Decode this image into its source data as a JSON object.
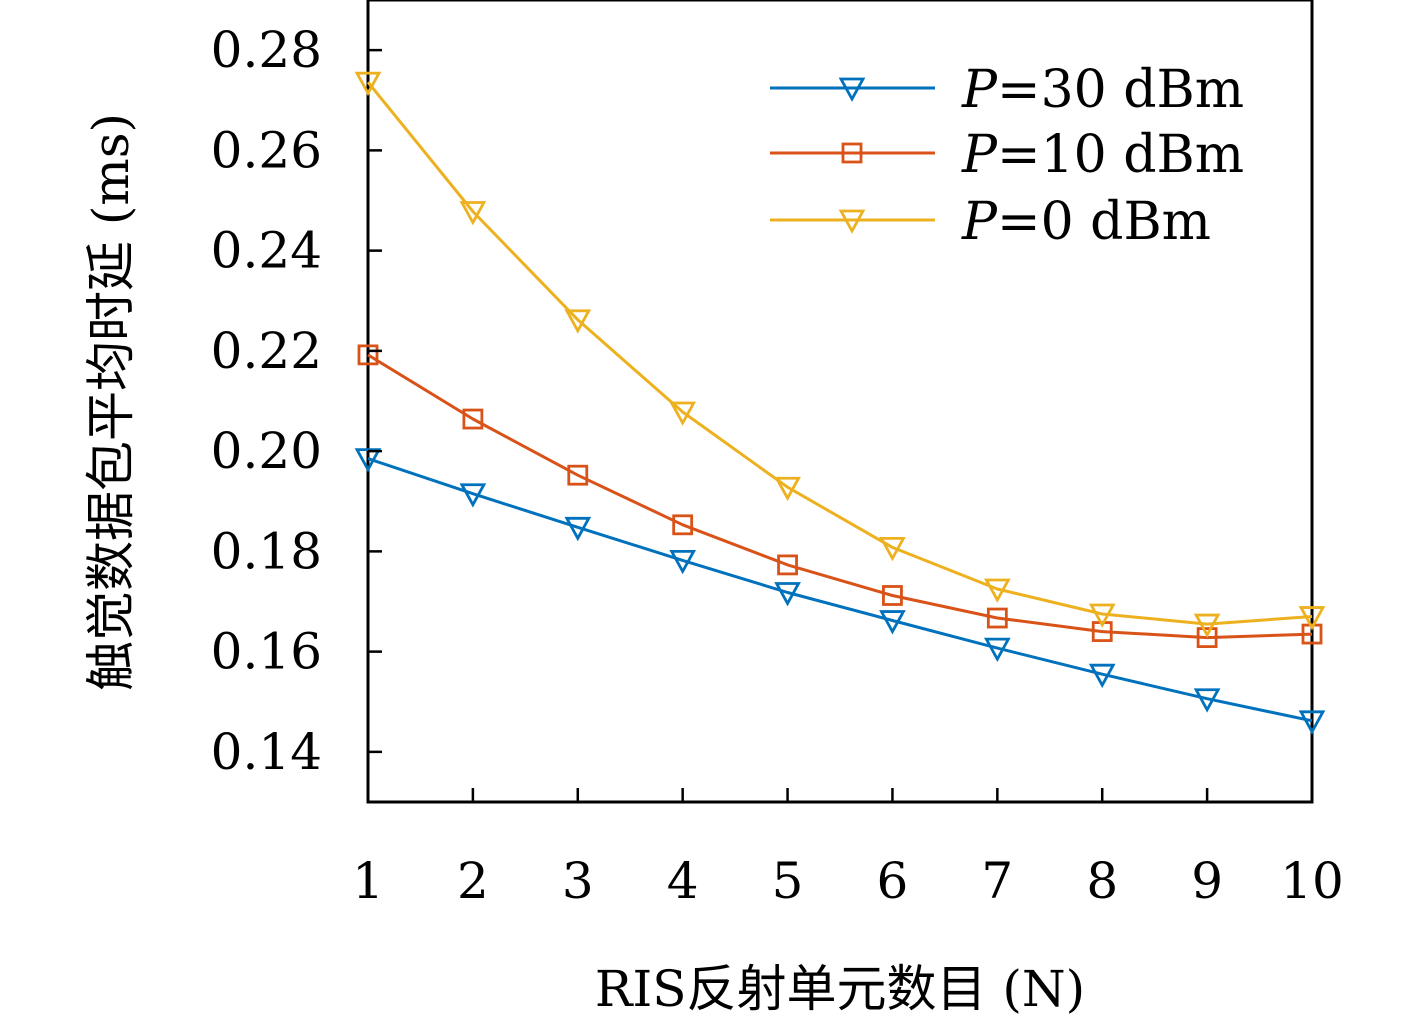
{
  "chart_data": {
    "type": "line",
    "xlabel": "RIS反射单元数目 (N)",
    "ylabel": "触觉数据包平均时延 (ms)",
    "x": [
      1,
      2,
      3,
      4,
      5,
      6,
      7,
      8,
      9,
      10
    ],
    "xlim": [
      1,
      10
    ],
    "ylim": [
      0.13,
      0.29
    ],
    "x_ticks": [
      1,
      2,
      3,
      4,
      5,
      6,
      7,
      8,
      9,
      10
    ],
    "x_tick_labels": [
      "1",
      "2",
      "3",
      "4",
      "5",
      "6",
      "7",
      "8",
      "9",
      "10"
    ],
    "y_ticks": [
      0.14,
      0.16,
      0.18,
      0.2,
      0.22,
      0.24,
      0.26,
      0.28
    ],
    "y_tick_labels": [
      "0.14",
      "0.16",
      "0.18",
      "0.20",
      "0.22",
      "0.24",
      "0.26",
      "0.28"
    ],
    "grid": false,
    "legend_position": "top-right",
    "series": [
      {
        "name": "P=30 dBm",
        "name_var": "P",
        "name_rest": "=30 dBm",
        "color": "#0072BD",
        "marker": "triangle-down",
        "values": [
          0.1985,
          0.1915,
          0.1848,
          0.1782,
          0.1718,
          0.1662,
          0.1607,
          0.1555,
          0.1506,
          0.1462
        ]
      },
      {
        "name": "P=10 dBm",
        "name_var": "P",
        "name_rest": "=10 dBm",
        "color": "#D95319",
        "marker": "square",
        "values": [
          0.2192,
          0.2064,
          0.1952,
          0.1853,
          0.1773,
          0.1712,
          0.1667,
          0.164,
          0.1628,
          0.1635
        ]
      },
      {
        "name": "P=0 dBm",
        "name_var": "P",
        "name_rest": "=0 dBm",
        "color": "#EDB120",
        "marker": "triangle-down",
        "values": [
          0.2736,
          0.2478,
          0.2262,
          0.2078,
          0.1928,
          0.1808,
          0.1725,
          0.1675,
          0.1655,
          0.167
        ]
      }
    ]
  }
}
